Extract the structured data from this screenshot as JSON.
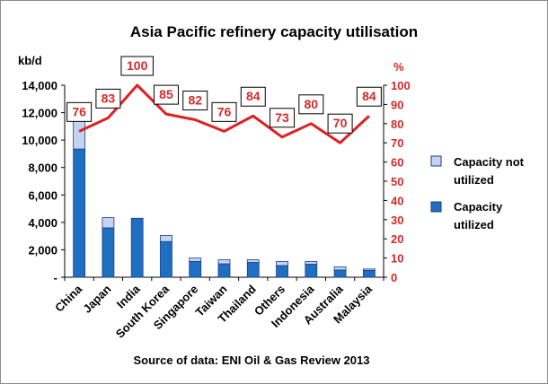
{
  "chart_data": {
    "type": "bar",
    "stacked": true,
    "title": "Asia Pacific refinery capacity utilisation",
    "ylabel_left": "kb/d",
    "ylabel_right": "%",
    "categories": [
      "China",
      "Japan",
      "India",
      "South Korea",
      "Singapore",
      "Taiwan",
      "Thailand",
      "Others",
      "Indonesia",
      "Australia",
      "Malaysia"
    ],
    "series": [
      {
        "name": "Capacity utilized",
        "type": "bar",
        "axis": "left",
        "color": "#1f6fc1",
        "values": [
          9350,
          3600,
          4300,
          2600,
          1150,
          980,
          1080,
          850,
          950,
          530,
          500
        ]
      },
      {
        "name": "Capacity not utilized",
        "type": "bar",
        "axis": "left",
        "color": "#c5d3ee",
        "values": [
          2950,
          750,
          0,
          450,
          250,
          300,
          200,
          300,
          200,
          230,
          100
        ]
      },
      {
        "name": "",
        "type": "line",
        "axis": "right",
        "color": "#e02020",
        "values": [
          76,
          83,
          100,
          85,
          82,
          76,
          84,
          73,
          80,
          70,
          84
        ]
      }
    ],
    "data_labels": [
      "76",
      "83",
      "100",
      "85",
      "82",
      "76",
      "84",
      "73",
      "80",
      "70",
      "84"
    ],
    "ylim_left": [
      0,
      14000
    ],
    "ylim_right": [
      0,
      100
    ],
    "yticks_left": [
      "-",
      "2,000",
      "4,000",
      "6,000",
      "8,000",
      "10,000",
      "12,000",
      "14,000"
    ],
    "yticks_right": [
      "0",
      "10",
      "20",
      "30",
      "40",
      "50",
      "60",
      "70",
      "80",
      "90",
      "100"
    ],
    "legend": {
      "placement": "right",
      "entries": [
        {
          "line1": "Capacity not",
          "line2": "utilized",
          "color": "#c5d3ee"
        },
        {
          "line1": "Capacity",
          "line2": "utilized",
          "color": "#1f6fc1"
        }
      ]
    },
    "grid": false,
    "source": "Source of data: ENI Oil & Gas Review 2013"
  }
}
